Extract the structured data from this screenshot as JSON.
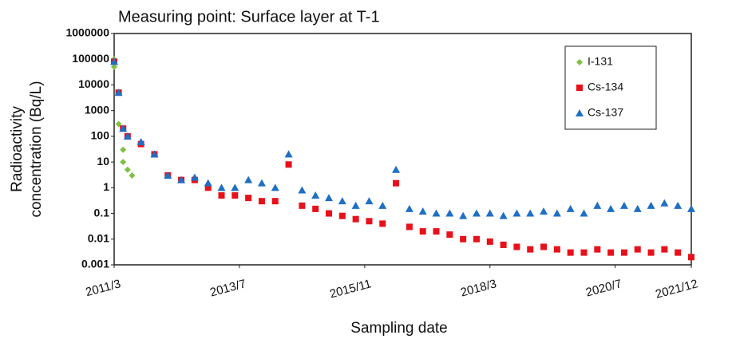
{
  "chart_data": {
    "type": "scatter",
    "title": "Measuring point: Surface layer at T-1",
    "xlabel": "Sampling date",
    "ylabel": [
      "Radioactivity",
      "concentration (Bq/L)"
    ],
    "log_y": true,
    "legend": "upper right",
    "xlim": [
      "2011/3",
      "2021/12"
    ],
    "xticks": [
      "2011/3",
      "2013/7",
      "2015/11",
      "2018/3",
      "2020/7",
      "2021/12"
    ],
    "ylim": [
      0.001,
      1000000
    ],
    "yticks": [
      0.001,
      0.01,
      0.1,
      1,
      10,
      100,
      1000,
      10000,
      100000,
      1000000
    ],
    "series": [
      {
        "name": "I-131",
        "color": "#7dc241",
        "marker": "diamond",
        "x": [
          "2011/3",
          "2011/3",
          "2011/4",
          "2011/4",
          "2011/5",
          "2011/5",
          "2011/6",
          "2011/7"
        ],
        "values": [
          100000,
          50000,
          5000,
          300,
          30,
          10,
          5,
          3
        ]
      },
      {
        "name": "Cs-134",
        "color": "#e8101a",
        "marker": "square",
        "x": [
          "2011/3",
          "2011/4",
          "2011/5",
          "2011/6",
          "2011/9",
          "2011/12",
          "2012/3",
          "2012/6",
          "2012/9",
          "2012/12",
          "2013/3",
          "2013/6",
          "2013/9",
          "2013/12",
          "2014/3",
          "2014/6",
          "2014/9",
          "2014/12",
          "2015/3",
          "2015/6",
          "2015/9",
          "2015/12",
          "2016/3",
          "2016/6",
          "2016/9",
          "2016/12",
          "2017/3",
          "2017/6",
          "2017/9",
          "2017/12",
          "2018/3",
          "2018/6",
          "2018/9",
          "2018/12",
          "2019/3",
          "2019/6",
          "2019/9",
          "2019/12",
          "2020/3",
          "2020/6",
          "2020/9",
          "2020/12",
          "2021/3",
          "2021/6",
          "2021/9",
          "2021/12"
        ],
        "values": [
          80000,
          5000,
          200,
          100,
          50,
          20,
          3,
          2,
          2,
          1,
          0.5,
          0.5,
          0.4,
          0.3,
          0.3,
          8,
          0.2,
          0.15,
          0.1,
          0.08,
          0.06,
          0.05,
          0.04,
          1.5,
          0.03,
          0.02,
          0.02,
          0.015,
          0.01,
          0.01,
          0.008,
          0.006,
          0.005,
          0.004,
          0.005,
          0.004,
          0.003,
          0.003,
          0.004,
          0.003,
          0.003,
          0.004,
          0.003,
          0.004,
          0.003,
          0.002
        ]
      },
      {
        "name": "Cs-137",
        "color": "#1f6fc4",
        "marker": "triangle",
        "x": [
          "2011/3",
          "2011/4",
          "2011/5",
          "2011/6",
          "2011/9",
          "2011/12",
          "2012/3",
          "2012/6",
          "2012/9",
          "2012/12",
          "2013/3",
          "2013/6",
          "2013/9",
          "2013/12",
          "2014/3",
          "2014/6",
          "2014/9",
          "2014/12",
          "2015/3",
          "2015/6",
          "2015/9",
          "2015/12",
          "2016/3",
          "2016/6",
          "2016/9",
          "2016/12",
          "2017/3",
          "2017/6",
          "2017/9",
          "2017/12",
          "2018/3",
          "2018/6",
          "2018/9",
          "2018/12",
          "2019/3",
          "2019/6",
          "2019/9",
          "2019/12",
          "2020/3",
          "2020/6",
          "2020/9",
          "2020/12",
          "2021/3",
          "2021/6",
          "2021/9",
          "2021/12"
        ],
        "values": [
          80000,
          5000,
          200,
          100,
          60,
          20,
          3,
          2,
          2.5,
          1.5,
          1,
          1,
          2,
          1.5,
          1,
          20,
          0.8,
          0.5,
          0.4,
          0.3,
          0.2,
          0.3,
          0.2,
          5,
          0.15,
          0.12,
          0.1,
          0.1,
          0.08,
          0.1,
          0.1,
          0.08,
          0.1,
          0.1,
          0.12,
          0.1,
          0.15,
          0.1,
          0.2,
          0.15,
          0.2,
          0.15,
          0.2,
          0.25,
          0.2,
          0.15
        ]
      }
    ]
  }
}
